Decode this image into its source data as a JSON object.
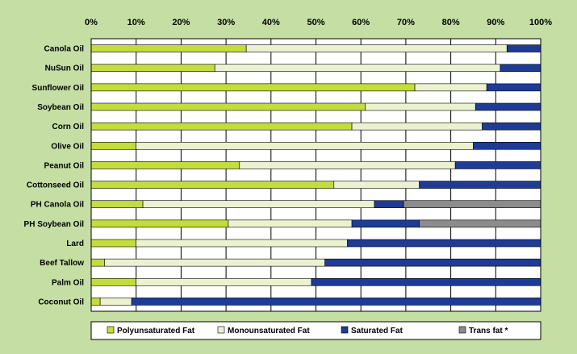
{
  "chart_data": {
    "type": "bar",
    "orientation": "horizontal",
    "stacked": "percent",
    "title": "",
    "xlabel": "",
    "ylabel": "",
    "xlim": [
      0,
      100
    ],
    "x_ticks": [
      "0%",
      "10%",
      "20%",
      "30%",
      "40%",
      "50%",
      "60%",
      "70%",
      "80%",
      "90%",
      "100%"
    ],
    "x_axis_position": "top",
    "grid": true,
    "legend_position": "bottom",
    "categories": [
      "Canola Oil",
      "NuSun Oil",
      "Sunflower Oil",
      "Soybean Oil",
      "Corn Oil",
      "Olive Oil",
      "Peanut Oil",
      "Cottonseed Oil",
      "PH Canola Oil",
      "PH Soybean Oil",
      "Lard",
      "Beef Tallow",
      "Palm Oil",
      "Coconut Oil"
    ],
    "series": [
      {
        "name": "Polyunsaturated Fat",
        "color": "#c4dc3c",
        "values": [
          34.5,
          27.5,
          72,
          61,
          58,
          10,
          33,
          54,
          11.5,
          30.5,
          10,
          3,
          10,
          2
        ]
      },
      {
        "name": "Monounsaturated Fat",
        "color": "#eaf2cf",
        "values": [
          58,
          63.5,
          16,
          24.5,
          29,
          75,
          48,
          19,
          51.5,
          27.5,
          47,
          49,
          39,
          7
        ]
      },
      {
        "name": "Saturated Fat",
        "color": "#1e3c96",
        "values": [
          7.5,
          9,
          12,
          14.5,
          13,
          15,
          19,
          27,
          6.5,
          15,
          43,
          48,
          51,
          91
        ]
      },
      {
        "name": "Trans fat *",
        "color": "#8c8c8c",
        "values": [
          0,
          0,
          0,
          0,
          0,
          0,
          0,
          0,
          30.5,
          27,
          0,
          0,
          0,
          0
        ]
      }
    ]
  }
}
